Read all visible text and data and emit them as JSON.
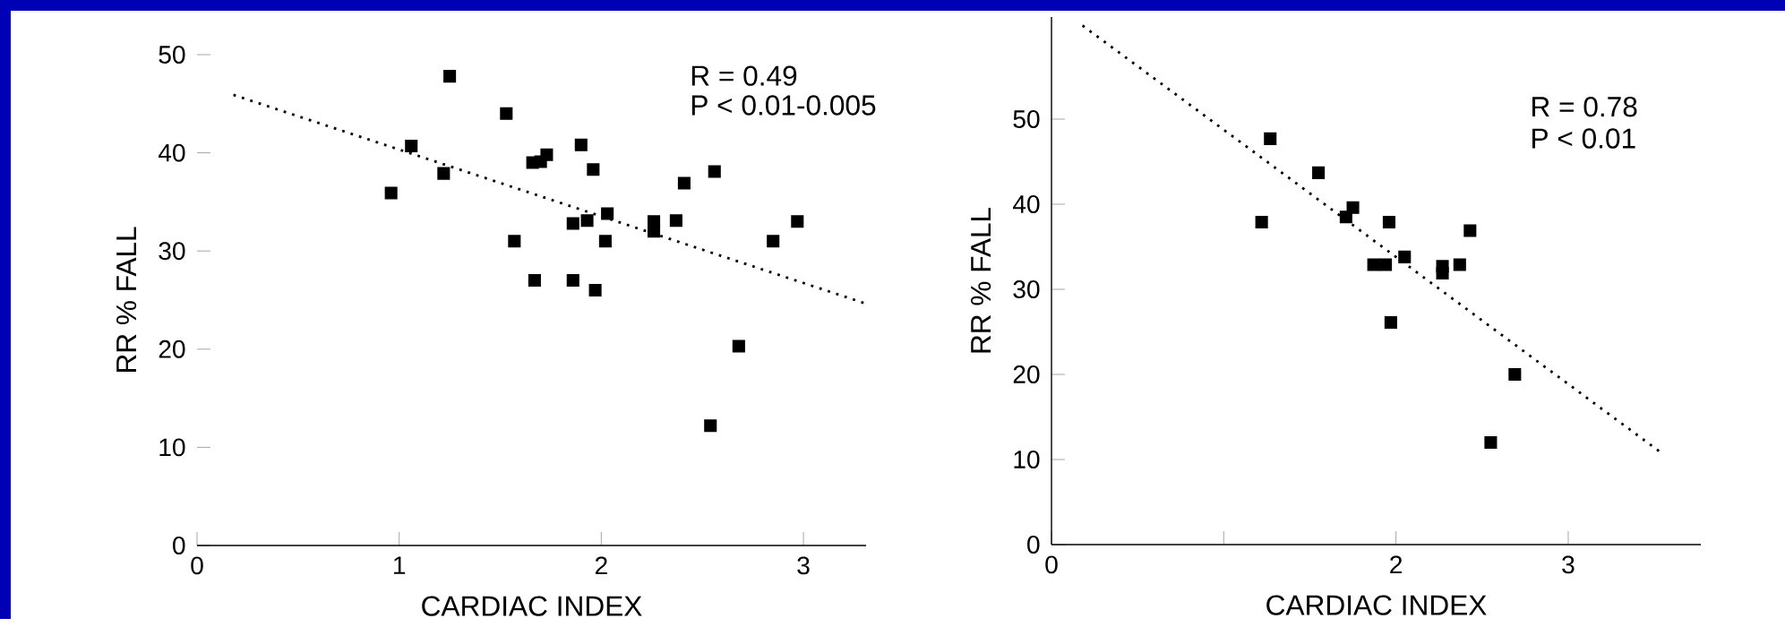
{
  "chart_data": [
    {
      "type": "scatter",
      "xlabel": "CARDIAC INDEX",
      "ylabel": "RR % FALL",
      "annotations": [
        "R = 0.49",
        "P < 0.01-0.005"
      ],
      "xlim": [
        0,
        3.31
      ],
      "ylim": [
        0,
        50
      ],
      "xticks": [
        0,
        1,
        2,
        3
      ],
      "yticks": [
        0,
        10,
        20,
        30,
        40,
        50
      ],
      "grid": false,
      "series": [
        {
          "color": "#000000",
          "marker": "square",
          "x": [
            0.96,
            1.06,
            1.22,
            1.25,
            1.53,
            1.57,
            1.67,
            1.66,
            1.7,
            1.73,
            1.86,
            1.86,
            1.9,
            1.93,
            1.96,
            1.97,
            2.03,
            2.02,
            2.26,
            2.26,
            2.37,
            2.41,
            2.56,
            2.54,
            2.68,
            2.85,
            2.97
          ],
          "values": [
            35.9,
            40.7,
            37.9,
            47.8,
            44.0,
            31.0,
            27.0,
            39.0,
            39.1,
            39.8,
            27.0,
            32.8,
            40.8,
            33.1,
            38.3,
            26.0,
            33.8,
            31.0,
            33.0,
            32.0,
            33.1,
            36.9,
            38.1,
            12.2,
            20.3,
            31.0,
            33.0
          ]
        },
        {
          "type": "line",
          "color": "#000000",
          "line_style": "dotted",
          "x": [
            0.18,
            3.3
          ],
          "values": [
            45.9,
            24.7
          ]
        }
      ]
    },
    {
      "type": "scatter",
      "xlabel": "CARDIAC INDEX",
      "ylabel": "RR % FALL",
      "annotations": [
        "R = 0.78",
        "P < 0.01"
      ],
      "xlim": [
        0,
        3.77
      ],
      "ylim": [
        0,
        62
      ],
      "xticks": [
        0,
        {
          "value": 1,
          "label": null
        },
        2,
        3
      ],
      "yticks": [
        0,
        10,
        20,
        30,
        40,
        50
      ],
      "grid": false,
      "series": [
        {
          "color": "#000000",
          "marker": "square",
          "x": [
            1.27,
            1.22,
            1.55,
            1.71,
            1.75,
            1.96,
            1.87,
            1.94,
            2.05,
            1.97,
            2.27,
            2.27,
            2.37,
            2.43,
            2.69,
            2.55
          ],
          "values": [
            47.7,
            37.9,
            43.7,
            38.5,
            39.6,
            37.9,
            32.9,
            32.9,
            33.8,
            26.1,
            32.7,
            31.9,
            32.9,
            36.9,
            20.0,
            12.0
          ]
        },
        {
          "type": "line",
          "color": "#000000",
          "line_style": "dotted",
          "x": [
            0.18,
            3.54
          ],
          "values": [
            61.0,
            10.8
          ]
        }
      ]
    }
  ]
}
